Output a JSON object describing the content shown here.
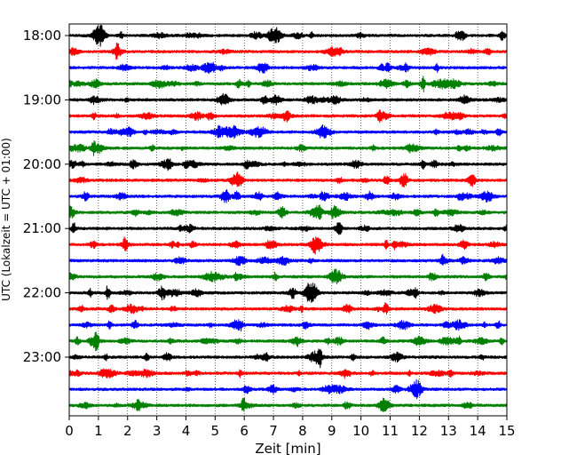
{
  "chart_data": {
    "type": "line",
    "title": "",
    "xlabel": "Zeit  [min]",
    "ylabel": "UTC (Lokalzeit = UTC + 01:00)",
    "xlim": [
      0,
      15
    ],
    "x_ticks": [
      0,
      1,
      2,
      3,
      4,
      5,
      6,
      7,
      8,
      9,
      10,
      11,
      12,
      13,
      14,
      15
    ],
    "x_tick_labels": [
      "0",
      "1",
      "2",
      "3",
      "4",
      "5",
      "6",
      "7",
      "8",
      "9",
      "10",
      "11",
      "12",
      "13",
      "14",
      "15"
    ],
    "y_tick_labels": [
      "18:00",
      "19:00",
      "20:00",
      "21:00",
      "22:00",
      "23:00"
    ],
    "grid": "vertical dotted at each minute",
    "trace_interval_min": 15,
    "color_cycle": [
      "#000000",
      "#ff0000",
      "#0000ff",
      "#008000"
    ],
    "traces": [
      {
        "start": "18:00",
        "color": "#000000"
      },
      {
        "start": "18:15",
        "color": "#ff0000"
      },
      {
        "start": "18:30",
        "color": "#0000ff"
      },
      {
        "start": "18:45",
        "color": "#008000"
      },
      {
        "start": "19:00",
        "color": "#000000"
      },
      {
        "start": "19:15",
        "color": "#ff0000"
      },
      {
        "start": "19:30",
        "color": "#0000ff"
      },
      {
        "start": "19:45",
        "color": "#008000"
      },
      {
        "start": "20:00",
        "color": "#000000"
      },
      {
        "start": "20:15",
        "color": "#ff0000"
      },
      {
        "start": "20:30",
        "color": "#0000ff"
      },
      {
        "start": "20:45",
        "color": "#008000"
      },
      {
        "start": "21:00",
        "color": "#000000"
      },
      {
        "start": "21:15",
        "color": "#ff0000"
      },
      {
        "start": "21:30",
        "color": "#0000ff"
      },
      {
        "start": "21:45",
        "color": "#008000"
      },
      {
        "start": "22:00",
        "color": "#000000"
      },
      {
        "start": "22:15",
        "color": "#ff0000"
      },
      {
        "start": "22:30",
        "color": "#0000ff"
      },
      {
        "start": "22:45",
        "color": "#008000"
      },
      {
        "start": "23:00",
        "color": "#000000"
      },
      {
        "start": "23:15",
        "color": "#ff0000"
      },
      {
        "start": "23:30",
        "color": "#0000ff"
      },
      {
        "start": "23:45",
        "color": "#008000"
      }
    ]
  }
}
